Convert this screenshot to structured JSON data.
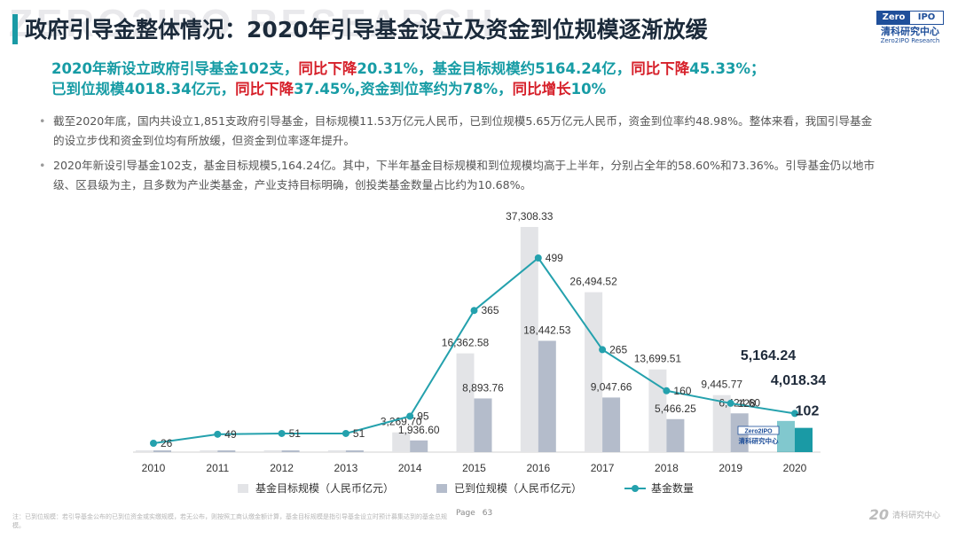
{
  "watermark": "ZERO2IPO RESEARCH",
  "title": "政府引导金整体情况：2020年引导基金设立及资金到位规模逐渐放缓",
  "logo": {
    "left": "Zero",
    "right": "IPO",
    "cn": "清科研究中心",
    "en": "Zero2IPO Research"
  },
  "highlight": {
    "p1": "2020年新设立政府引导基金102支，",
    "p2": "同比下降",
    "p3": "20.31%，基金目标规模约5164.24亿，",
    "p4": "同比下降",
    "p5": "45.33%；",
    "p6": "已到位规模4018.34亿元，",
    "p7": "同比下降",
    "p8": "37.45%,资金到位率约为78%，",
    "p9": "同比增长",
    "p10": "10%"
  },
  "bullets": [
    "截至2020年底，国内共设立1,851支政府引导基金，目标规模11.53万亿元人民币，已到位规模5.65万亿元人民币，资金到位率约48.98%。整体来看，我国引导基金的设立步伐和资金到位均有所放缓，但资金到位率逐年提升。",
    "2020年新设引导基金102支，基金目标规模5,164.24亿。其中，下半年基金目标规模和到位规模均高于上半年，分别占全年的58.60%和73.36%。引导基金仍以地市级、区县级为主，且多数为产业类基金，产业支持目标明确，创投类基金数量占比约为10.68%。"
  ],
  "chart_data": {
    "type": "bar",
    "categories": [
      "2010",
      "2011",
      "2012",
      "2013",
      "2014",
      "2015",
      "2016",
      "2017",
      "2018",
      "2019",
      "2020"
    ],
    "series": [
      {
        "name": "基金目标规模（人民币亿元）",
        "type": "bar",
        "color": "#e3e4e7",
        "values": [
          null,
          null,
          null,
          null,
          3269.7,
          16362.58,
          37308.33,
          26494.52,
          13699.51,
          9445.77,
          5164.24
        ],
        "labels": [
          "",
          "",
          "",
          "",
          "3,269.70",
          "16,362.58",
          "37,308.33",
          "26,494.52",
          "13,699.51",
          "9,445.77",
          "5,164.24"
        ]
      },
      {
        "name": "已到位规模（人民币亿元）",
        "type": "bar",
        "color": "#b4bccb",
        "values": [
          null,
          null,
          null,
          null,
          1936.6,
          8893.76,
          18442.53,
          9047.66,
          5466.25,
          6424.6,
          4018.34
        ],
        "labels": [
          "",
          "",
          "",
          "",
          "1,936.60",
          "8,893.76",
          "18,442.53",
          "9,047.66",
          "5,466.25",
          "6,424.60",
          "4,018.34"
        ]
      },
      {
        "name": "基金数量",
        "type": "line",
        "color": "#24a1ad",
        "values": [
          26,
          49,
          51,
          51,
          95,
          365,
          499,
          265,
          160,
          128,
          102
        ],
        "labels": [
          "26",
          "49",
          "51",
          "51",
          "95",
          "365",
          "499",
          "265",
          "160",
          "128",
          "102"
        ]
      }
    ],
    "highlight_color": "#1a9aa5",
    "logo_text": "Zero2IPO 清科研究中心"
  },
  "footnote": "注：已到位规模：若引导基金公布的已到位资金或实缴规模，若无公布，则按照工商认缴金额计算，基金目标规模是指引导基金设立时预计募集达到的基金总规模。",
  "page": {
    "label": "Page",
    "number": "63"
  },
  "footer": {
    "num": "20",
    "text": "清科研究中心"
  }
}
